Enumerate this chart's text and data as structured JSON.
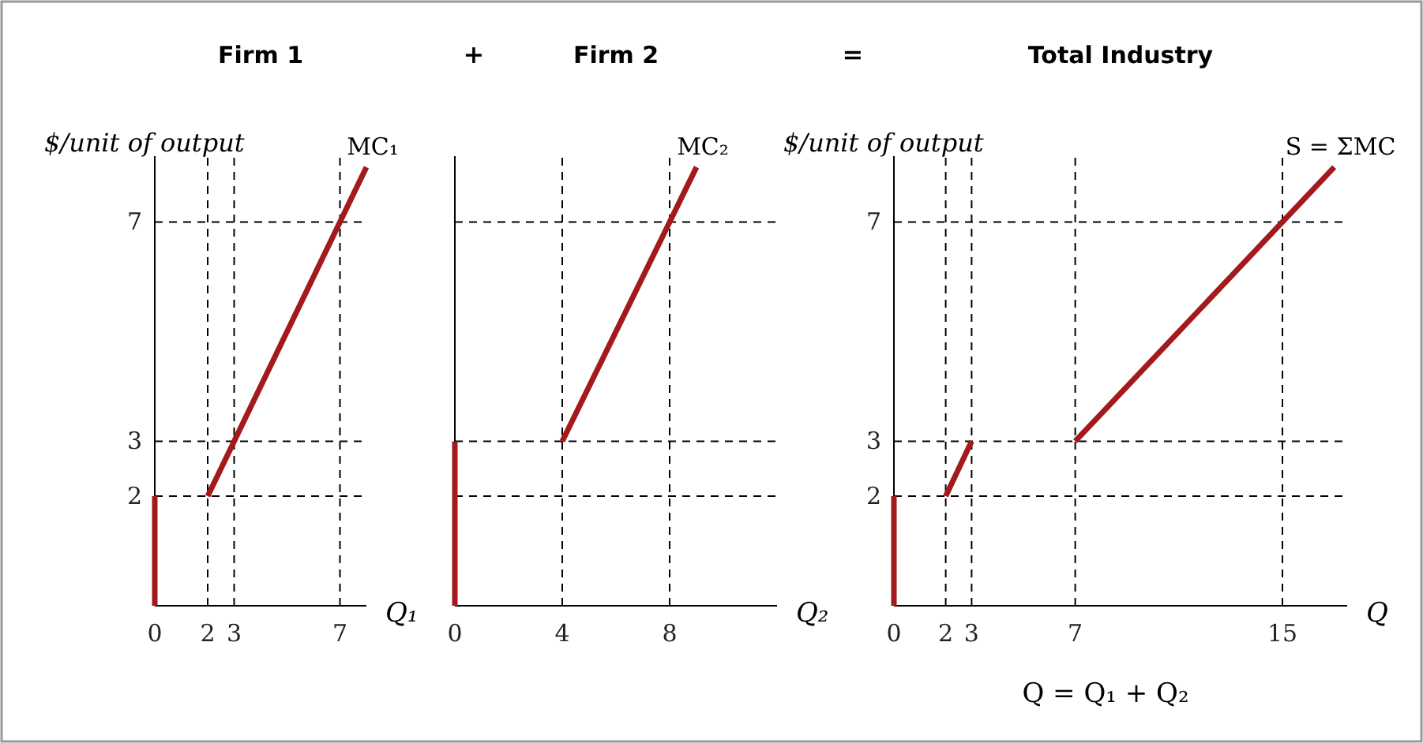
{
  "chart_data": [
    {
      "type": "line",
      "title": "Firm 1",
      "ylabel": "$/unit of output",
      "xlabel": "Q₁",
      "annotations": [
        "+"
      ],
      "xlim": [
        0,
        8
      ],
      "ylim": [
        0,
        8.2
      ],
      "xticks": [
        0,
        2,
        3,
        7
      ],
      "yticks": [
        2,
        3,
        7
      ],
      "grid": false,
      "marker": "none",
      "line_style": "solid",
      "series": [
        {
          "color": "#a3191c",
          "x": [
            0,
            0
          ],
          "values": [
            0,
            2
          ]
        },
        {
          "name": "MC₁",
          "color": "#a3191c",
          "x": [
            2,
            3,
            7,
            8
          ],
          "values": [
            2,
            3,
            7,
            8
          ]
        }
      ],
      "ref_lines": [
        {
          "axis": "y",
          "value": 7,
          "color": "#000000",
          "line_style": "dashed"
        },
        {
          "axis": "y",
          "value": 3,
          "color": "#000000",
          "line_style": "dashed"
        },
        {
          "axis": "y",
          "value": 2,
          "color": "#000000",
          "line_style": "dashed"
        },
        {
          "axis": "x",
          "value": 2,
          "color": "#000000",
          "line_style": "dashed"
        },
        {
          "axis": "x",
          "value": 3,
          "color": "#000000",
          "line_style": "dashed"
        },
        {
          "axis": "x",
          "value": 7,
          "color": "#000000",
          "line_style": "dashed"
        }
      ]
    },
    {
      "type": "line",
      "title": "Firm 2",
      "xlabel": "Q₂",
      "annotations": [
        "="
      ],
      "xlim": [
        0,
        12
      ],
      "ylim": [
        0,
        8.2
      ],
      "xticks": [
        0,
        4,
        8
      ],
      "yticks": [
        2,
        3,
        7
      ],
      "tick_labels": "x",
      "grid": false,
      "marker": "none",
      "line_style": "solid",
      "series": [
        {
          "color": "#a3191c",
          "x": [
            0,
            0
          ],
          "values": [
            0,
            3
          ]
        },
        {
          "name": "MC₂",
          "color": "#a3191c",
          "x": [
            4,
            8,
            9
          ],
          "values": [
            3,
            7,
            8
          ]
        }
      ],
      "ref_lines": [
        {
          "axis": "y",
          "value": 7,
          "color": "#000000",
          "line_style": "dashed"
        },
        {
          "axis": "y",
          "value": 3,
          "color": "#000000",
          "line_style": "dashed"
        },
        {
          "axis": "y",
          "value": 2,
          "color": "#000000",
          "line_style": "dashed"
        },
        {
          "axis": "x",
          "value": 4,
          "color": "#000000",
          "line_style": "dashed"
        },
        {
          "axis": "x",
          "value": 8,
          "color": "#000000",
          "line_style": "dashed"
        }
      ]
    },
    {
      "type": "line",
      "title": "Total Industry",
      "ylabel": "$/unit of output",
      "xlabel": "Q",
      "annotations": [
        "Q = Q₁ + Q₂"
      ],
      "xlim": [
        0,
        17.5
      ],
      "ylim": [
        0,
        8.2
      ],
      "xticks": [
        0,
        2,
        3,
        7,
        15
      ],
      "yticks": [
        2,
        3,
        7
      ],
      "grid": false,
      "marker": "none",
      "line_style": "solid",
      "series": [
        {
          "color": "#a3191c",
          "x": [
            0,
            0
          ],
          "values": [
            0,
            2
          ]
        },
        {
          "color": "#a3191c",
          "x": [
            2,
            3
          ],
          "values": [
            2,
            3
          ]
        },
        {
          "name": "S = ΣMC",
          "color": "#a3191c",
          "x": [
            7,
            15,
            17
          ],
          "values": [
            3,
            7,
            8
          ]
        }
      ],
      "ref_lines": [
        {
          "axis": "y",
          "value": 7,
          "color": "#000000",
          "line_style": "dashed"
        },
        {
          "axis": "y",
          "value": 3,
          "color": "#000000",
          "line_style": "dashed"
        },
        {
          "axis": "y",
          "value": 2,
          "color": "#000000",
          "line_style": "dashed"
        },
        {
          "axis": "x",
          "value": 2,
          "color": "#000000",
          "line_style": "dashed"
        },
        {
          "axis": "x",
          "value": 3,
          "color": "#000000",
          "line_style": "dashed"
        },
        {
          "axis": "x",
          "value": 7,
          "color": "#000000",
          "line_style": "dashed"
        },
        {
          "axis": "x",
          "value": 15,
          "color": "#000000",
          "line_style": "dashed"
        }
      ]
    }
  ]
}
